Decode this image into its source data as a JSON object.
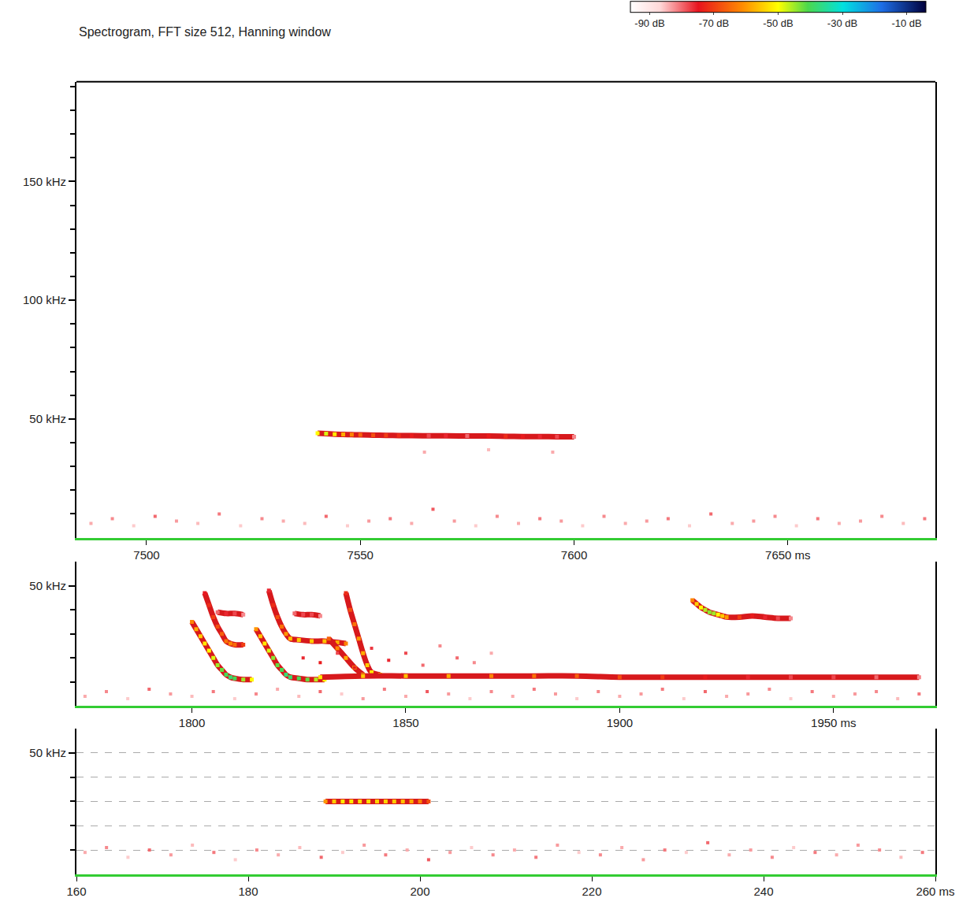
{
  "chart_data": [
    {
      "type": "scatter",
      "title": "Spectrogram, FFT size 512, Hanning window",
      "color_bar": {
        "range": [
          -96,
          -4
        ],
        "ticks": [
          {
            "value": -90,
            "label": "-90 dB"
          },
          {
            "value": -70,
            "label": "-70 dB"
          },
          {
            "value": -50,
            "label": "-50 dB"
          },
          {
            "value": -30,
            "label": "-30 dB"
          },
          {
            "value": -10,
            "label": "-10 dB"
          }
        ]
      },
      "xlim": [
        7483.6,
        7684.5
      ],
      "xticks": [
        7500,
        7550,
        7600,
        {
          "value": 7650,
          "label": "7650 ms"
        }
      ],
      "ylim": [
        0,
        192
      ],
      "yticks": [
        {
          "value": 50,
          "label": "50 kHz"
        },
        {
          "value": 100,
          "label": "100 kHz"
        },
        {
          "value": 150,
          "label": "150 kHz"
        }
      ],
      "minor_yticks": [
        10,
        20,
        30,
        40,
        60,
        70,
        80,
        90,
        110,
        120,
        130,
        140,
        160,
        170,
        180,
        190
      ],
      "grid": false,
      "series": [
        {
          "color": "#d7191c",
          "line_style": "solid",
          "x": [
            7540,
            7542,
            7544,
            7546,
            7548,
            7550,
            7553,
            7556,
            7559,
            7562,
            7566,
            7570,
            7575,
            7580,
            7584,
            7588,
            7592,
            7596,
            7600
          ],
          "values": [
            44,
            43.8,
            43.6,
            43.5,
            43.4,
            43.3,
            43.2,
            43.1,
            43,
            43,
            42.9,
            42.9,
            42.8,
            42.8,
            42.7,
            42.6,
            42.6,
            42.5,
            42.5
          ],
          "db": [
            -50,
            -48,
            -52,
            -58,
            -62,
            -66,
            -68,
            -70,
            -72,
            -74,
            -78,
            -76,
            -80,
            -74,
            -72,
            -74,
            -76,
            -78,
            -82
          ]
        },
        {
          "line_style": "none",
          "x": [
            7487,
            7492,
            7497,
            7502,
            7507,
            7512,
            7517,
            7522,
            7527,
            7532,
            7537,
            7542,
            7547,
            7552,
            7557,
            7562,
            7567,
            7572,
            7577,
            7582,
            7587,
            7592,
            7597,
            7602,
            7607,
            7612,
            7617,
            7622,
            7627,
            7632,
            7637,
            7642,
            7647,
            7652,
            7657,
            7662,
            7667,
            7672,
            7677,
            7682,
            7565,
            7580,
            7595
          ],
          "values": [
            6,
            8,
            5,
            9,
            7,
            6,
            10,
            5,
            8,
            7,
            6,
            9,
            5,
            7,
            8,
            6,
            12,
            7,
            5,
            9,
            6,
            8,
            7,
            5,
            9,
            6,
            7,
            8,
            5,
            10,
            6,
            7,
            9,
            5,
            8,
            6,
            7,
            9,
            6,
            8,
            36,
            37,
            36
          ],
          "db": [
            -84,
            -82,
            -86,
            -80,
            -83,
            -85,
            -81,
            -86,
            -82,
            -84,
            -85,
            -80,
            -86,
            -83,
            -81,
            -84,
            -79,
            -83,
            -86,
            -82,
            -84,
            -81,
            -83,
            -86,
            -82,
            -84,
            -83,
            -81,
            -86,
            -80,
            -84,
            -83,
            -82,
            -86,
            -81,
            -84,
            -83,
            -82,
            -85,
            -81,
            -84,
            -85,
            -84
          ]
        }
      ]
    },
    {
      "type": "scatter",
      "xlim": [
        1773,
        1973.8
      ],
      "xticks": [
        1800,
        1850,
        1900,
        {
          "value": 1950,
          "label": "1950 ms"
        }
      ],
      "ylim": [
        0,
        60
      ],
      "yticks": [
        {
          "value": 50,
          "label": "50 kHz"
        }
      ],
      "minor_yticks": [
        10,
        20,
        30,
        40
      ],
      "grid": false,
      "series": [
        {
          "color": "#d7191c",
          "line_style": "solid",
          "x": [
            1800,
            1801,
            1802,
            1803,
            1804,
            1805,
            1806,
            1807,
            1808,
            1809,
            1810,
            1812,
            1814
          ],
          "values": [
            35,
            32,
            29,
            26,
            23,
            20,
            17,
            15,
            13,
            12,
            11.5,
            11,
            11
          ],
          "db": [
            -62,
            -58,
            -55,
            -52,
            -50,
            -48,
            -45,
            -42,
            -40,
            -38,
            -40,
            -45,
            -50
          ]
        },
        {
          "color": "#d7191c",
          "line_style": "solid",
          "x": [
            1803,
            1804,
            1805,
            1806,
            1807,
            1808,
            1809,
            1810,
            1812
          ],
          "values": [
            47,
            42,
            37,
            33,
            30,
            27,
            26,
            25.5,
            25.5
          ],
          "db": [
            -75,
            -72,
            -70,
            -68,
            -66,
            -64,
            -62,
            -65,
            -70
          ]
        },
        {
          "color": "#d7191c",
          "line_style": "solid",
          "x": [
            1806,
            1808,
            1810,
            1812
          ],
          "values": [
            39,
            38.5,
            38.5,
            38
          ],
          "db": [
            -80,
            -76,
            -78,
            -82
          ]
        },
        {
          "color": "#d7191c",
          "line_style": "solid",
          "x": [
            1815,
            1816,
            1817,
            1818,
            1819,
            1820,
            1821,
            1822,
            1823,
            1825,
            1827,
            1829,
            1831
          ],
          "values": [
            32,
            29,
            26,
            23,
            20,
            17,
            15,
            13,
            12,
            11.5,
            11,
            11,
            11
          ],
          "db": [
            -60,
            -56,
            -52,
            -48,
            -44,
            -42,
            -40,
            -38,
            -38,
            -40,
            -42,
            -46,
            -50
          ]
        },
        {
          "color": "#d7191c",
          "line_style": "solid",
          "x": [
            1818,
            1819,
            1820,
            1821,
            1822,
            1823,
            1825,
            1828,
            1831,
            1834,
            1836
          ],
          "values": [
            48,
            42,
            37,
            33,
            30,
            28,
            27.5,
            27,
            27,
            26.5,
            26
          ],
          "db": [
            -76,
            -72,
            -68,
            -64,
            -60,
            -56,
            -55,
            -55,
            -56,
            -58,
            -62
          ]
        },
        {
          "color": "#d7191c",
          "line_style": "solid",
          "x": [
            1824,
            1826,
            1828,
            1830
          ],
          "values": [
            38.5,
            38,
            38,
            37.5
          ],
          "db": [
            -80,
            -78,
            -78,
            -82
          ]
        },
        {
          "color": "#d7191c",
          "line_style": "solid",
          "x": [
            1832,
            1834,
            1836,
            1838,
            1840
          ],
          "values": [
            28,
            24,
            20,
            16,
            13
          ],
          "db": [
            -66,
            -62,
            -58,
            -56,
            -55
          ]
        },
        {
          "color": "#d7191c",
          "line_style": "solid",
          "x": [
            1836,
            1837,
            1838,
            1839,
            1840,
            1841,
            1842,
            1844
          ],
          "values": [
            47,
            40,
            34,
            28,
            22,
            17,
            14,
            13
          ],
          "db": [
            -72,
            -68,
            -64,
            -60,
            -58,
            -55,
            -52,
            -52
          ]
        },
        {
          "color": "#d7191c",
          "line_style": "solid",
          "x": [
            1830,
            1840,
            1850,
            1860,
            1870,
            1880,
            1890,
            1900,
            1910,
            1920,
            1930,
            1940,
            1950,
            1960,
            1970
          ],
          "values": [
            12,
            12.5,
            12.5,
            12.5,
            12.5,
            12.5,
            12.5,
            12,
            12,
            12,
            12,
            12,
            12,
            12,
            12
          ],
          "db": [
            -52,
            -55,
            -56,
            -58,
            -62,
            -64,
            -66,
            -68,
            -70,
            -74,
            -76,
            -78,
            -78,
            -80,
            -82
          ]
        },
        {
          "color": "#d7191c",
          "line_style": "solid",
          "x": [
            1917,
            1918,
            1919,
            1920,
            1921,
            1922,
            1923,
            1924,
            1925,
            1928,
            1931,
            1934,
            1937,
            1940
          ],
          "values": [
            44,
            42.5,
            41,
            40,
            39,
            38.5,
            38,
            37.5,
            37,
            37,
            37.5,
            37,
            36.5,
            36.5
          ],
          "db": [
            -62,
            -55,
            -50,
            -46,
            -44,
            -45,
            -50,
            -55,
            -60,
            -70,
            -74,
            -76,
            -78,
            -82
          ]
        },
        {
          "line_style": "none",
          "x": [
            1775,
            1780,
            1785,
            1790,
            1795,
            1800,
            1805,
            1810,
            1815,
            1820,
            1825,
            1830,
            1835,
            1840,
            1845,
            1850,
            1855,
            1860,
            1865,
            1870,
            1875,
            1880,
            1885,
            1890,
            1895,
            1900,
            1905,
            1910,
            1915,
            1920,
            1925,
            1930,
            1935,
            1940,
            1945,
            1950,
            1955,
            1960,
            1965,
            1970,
            1826,
            1830,
            1834,
            1838,
            1842,
            1846,
            1850,
            1854,
            1858,
            1862,
            1866,
            1870
          ],
          "values": [
            4,
            6,
            3,
            7,
            5,
            4,
            6,
            3,
            5,
            7,
            4,
            6,
            5,
            3,
            7,
            4,
            6,
            5,
            3,
            6,
            4,
            7,
            5,
            3,
            6,
            4,
            5,
            7,
            3,
            6,
            4,
            5,
            7,
            3,
            6,
            4,
            5,
            6,
            3,
            5,
            20,
            18,
            22,
            16,
            24,
            19,
            22,
            17,
            25,
            20,
            18,
            22
          ],
          "db": [
            -84,
            -82,
            -86,
            -80,
            -83,
            -85,
            -81,
            -86,
            -82,
            -84,
            -85,
            -80,
            -86,
            -83,
            -81,
            -84,
            -79,
            -83,
            -86,
            -82,
            -84,
            -81,
            -83,
            -86,
            -82,
            -84,
            -83,
            -81,
            -86,
            -80,
            -84,
            -83,
            -82,
            -86,
            -81,
            -84,
            -83,
            -82,
            -85,
            -81,
            -76,
            -74,
            -78,
            -75,
            -77,
            -76,
            -78,
            -80,
            -82,
            -80,
            -82,
            -84
          ]
        }
      ]
    },
    {
      "type": "scatter",
      "xlim": [
        160,
        260
      ],
      "xticks": [
        160,
        180,
        200,
        220,
        240,
        {
          "value": 260,
          "label": "260 ms"
        }
      ],
      "ylim": [
        0,
        60
      ],
      "yticks": [
        {
          "value": 50,
          "label": "50 kHz"
        }
      ],
      "minor_yticks": [
        10,
        20,
        30,
        40
      ],
      "grid": true,
      "series": [
        {
          "color": "#d7191c",
          "line_style": "solid",
          "x": [
            189,
            190,
            191,
            192,
            193,
            194,
            195,
            196,
            197,
            198,
            199,
            200,
            201
          ],
          "values": [
            30,
            30,
            30,
            30,
            30,
            30,
            30,
            30,
            30,
            30,
            30,
            30,
            30
          ],
          "db": [
            -60,
            -55,
            -52,
            -52,
            -53,
            -53,
            -54,
            -54,
            -55,
            -56,
            -58,
            -62,
            -68
          ]
        },
        {
          "line_style": "none",
          "x": [
            161,
            163.5,
            166,
            168.5,
            171,
            173.5,
            176,
            178.5,
            181,
            183.5,
            186,
            188.5,
            191,
            193.5,
            196,
            198.5,
            201,
            203.5,
            206,
            208.5,
            211,
            213.5,
            216,
            218.5,
            221,
            223.5,
            226,
            228.5,
            231,
            233.5,
            236,
            238.5,
            241,
            243.5,
            246,
            248.5,
            251,
            253.5,
            256,
            258.5
          ],
          "values": [
            9,
            11,
            7,
            10,
            8,
            12,
            9,
            6,
            10,
            8,
            11,
            7,
            9,
            12,
            8,
            10,
            6,
            9,
            11,
            8,
            10,
            7,
            12,
            9,
            8,
            11,
            6,
            10,
            9,
            13,
            8,
            10,
            7,
            11,
            9,
            8,
            12,
            10,
            7,
            9
          ],
          "db": [
            -84,
            -82,
            -86,
            -80,
            -83,
            -85,
            -81,
            -86,
            -82,
            -84,
            -85,
            -80,
            -86,
            -83,
            -81,
            -84,
            -79,
            -83,
            -86,
            -82,
            -84,
            -81,
            -83,
            -86,
            -82,
            -84,
            -83,
            -81,
            -86,
            -80,
            -84,
            -83,
            -82,
            -86,
            -81,
            -84,
            -83,
            -82,
            -85,
            -81
          ]
        }
      ]
    }
  ]
}
